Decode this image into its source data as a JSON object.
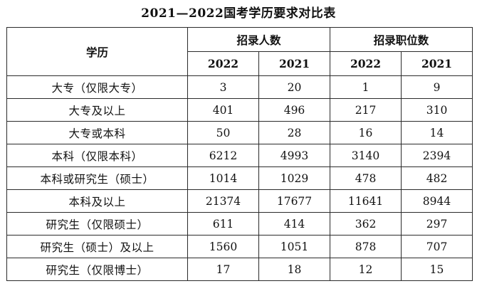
{
  "title": "2021—2022国考学历要求对比表",
  "table": {
    "edu_header": "学历",
    "group_headers": [
      "招录人数",
      "招录职位数"
    ],
    "year_headers": [
      "2022",
      "2021",
      "2022",
      "2021"
    ],
    "rows": [
      {
        "edu": "大专（仅限大专）",
        "vals": [
          "3",
          "20",
          "1",
          "9"
        ]
      },
      {
        "edu": "大专及以上",
        "vals": [
          "401",
          "496",
          "217",
          "310"
        ]
      },
      {
        "edu": "大专或本科",
        "vals": [
          "50",
          "28",
          "16",
          "14"
        ]
      },
      {
        "edu": "本科（仅限本科）",
        "vals": [
          "6212",
          "4993",
          "3140",
          "2394"
        ]
      },
      {
        "edu": "本科或研究生（硕士）",
        "vals": [
          "1014",
          "1029",
          "478",
          "482"
        ]
      },
      {
        "edu": "本科及以上",
        "vals": [
          "21374",
          "17677",
          "11641",
          "8944"
        ]
      },
      {
        "edu": "研究生（仅限硕士）",
        "vals": [
          "611",
          "414",
          "362",
          "297"
        ]
      },
      {
        "edu": "研究生（硕士）及以上",
        "vals": [
          "1560",
          "1051",
          "878",
          "707"
        ]
      },
      {
        "edu": "研究生（仅限博士）",
        "vals": [
          "17",
          "18",
          "12",
          "15"
        ]
      }
    ]
  }
}
